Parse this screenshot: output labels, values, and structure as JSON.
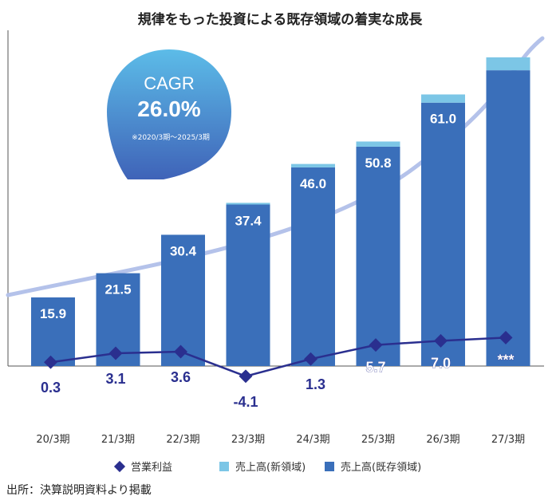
{
  "title": "規律をもった投資による既存領域の着実な成長",
  "source_note": "出所：決算説明資料より掲載",
  "cagr": {
    "label": "CAGR",
    "value": "26.0%",
    "note": "※2020/3期～2025/3期"
  },
  "chart_data": {
    "type": "bar",
    "title": "規律をもった投資による既存領域の着実な成長",
    "categories": [
      "20/3期",
      "21/3期",
      "22/3期",
      "23/3期",
      "24/3期",
      "25/3期",
      "26/3期",
      "27/3期"
    ],
    "series": [
      {
        "name": "売上高(既存領域)",
        "kind": "bar",
        "values": [
          15.9,
          21.5,
          30.4,
          37.4,
          46.0,
          50.8,
          61.0,
          68.5
        ],
        "labels": [
          "15.9",
          "21.5",
          "30.4",
          "37.4",
          "46.0",
          "50.8",
          "61.0",
          ""
        ]
      },
      {
        "name": "売上高(新領域)",
        "kind": "bar-stacked",
        "values": [
          0,
          0,
          0,
          0.4,
          0.8,
          1.2,
          1.9,
          3.0
        ]
      },
      {
        "name": "営業利益",
        "kind": "line",
        "values": [
          0.3,
          3.1,
          3.6,
          -4.1,
          1.3,
          5.7,
          7.0,
          8.0
        ],
        "labels": [
          "0.3",
          "3.1",
          "3.6",
          "-4.1",
          "1.3",
          "5.7",
          "7.0",
          "***"
        ]
      }
    ],
    "legend_position": "bottom",
    "colors": {
      "existing": "#3a6fba",
      "new": "#7cc6e6",
      "profit": "#2a2f8f",
      "trend": "#b4c2ea",
      "cagr_top": "#5cbce8",
      "cagr_bottom": "#3f63b8"
    }
  }
}
